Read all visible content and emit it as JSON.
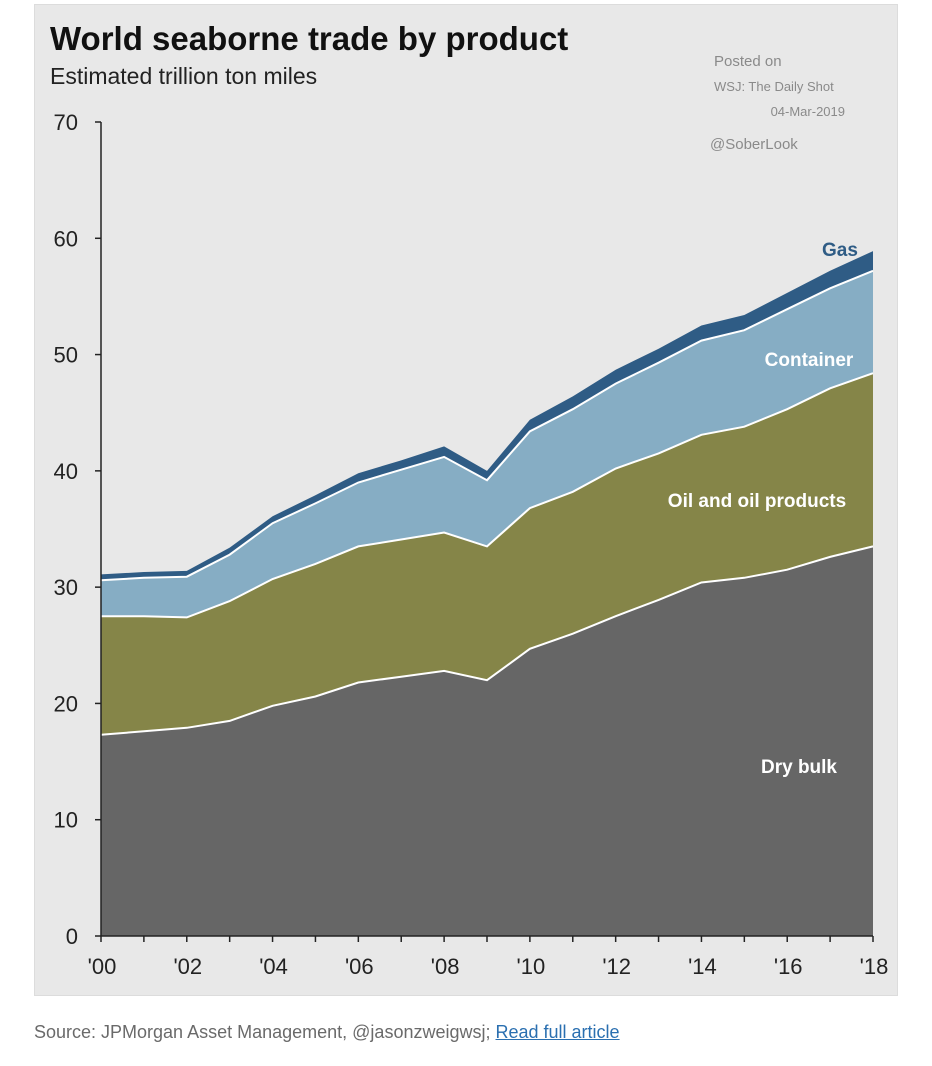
{
  "chart_data": {
    "type": "area",
    "stacked": true,
    "title": "World seaborne trade by product",
    "subtitle": "Estimated trillion ton miles",
    "x": [
      "'00",
      "'01",
      "'02",
      "'03",
      "'04",
      "'05",
      "'06",
      "'07",
      "'08",
      "'09",
      "'10",
      "'11",
      "'12",
      "'13",
      "'14",
      "'15",
      "'16",
      "'17",
      "'18"
    ],
    "x_tick_labels": [
      "'00",
      "'02",
      "'04",
      "'06",
      "'08",
      "'10",
      "'12",
      "'14",
      "'16",
      "'18"
    ],
    "ylim": [
      0,
      70
    ],
    "y_ticks": [
      "0",
      "10",
      "20",
      "30",
      "40",
      "50",
      "60",
      "70"
    ],
    "series": [
      {
        "name": "Dry bulk",
        "color": "#666666",
        "values": [
          17.3,
          17.6,
          17.9,
          18.5,
          19.8,
          20.6,
          21.8,
          22.3,
          22.8,
          22.0,
          24.7,
          26.0,
          27.5,
          28.9,
          30.4,
          30.8,
          31.5,
          32.6,
          33.5
        ]
      },
      {
        "name": "Oil and oil products",
        "color": "#858548",
        "values": [
          10.2,
          9.9,
          9.5,
          10.3,
          10.9,
          11.4,
          11.7,
          11.8,
          11.9,
          11.5,
          12.1,
          12.2,
          12.7,
          12.6,
          12.7,
          13.0,
          13.8,
          14.5,
          14.9
        ]
      },
      {
        "name": "Container",
        "color": "#86adc4",
        "values": [
          3.1,
          3.3,
          3.5,
          4.0,
          4.8,
          5.2,
          5.5,
          6.0,
          6.5,
          5.7,
          6.6,
          7.1,
          7.3,
          7.8,
          8.1,
          8.3,
          8.6,
          8.6,
          8.8
        ]
      },
      {
        "name": "Gas",
        "color": "#2f5c85",
        "values": [
          0.5,
          0.5,
          0.5,
          0.6,
          0.6,
          0.7,
          0.8,
          0.8,
          0.9,
          0.8,
          1.0,
          1.1,
          1.2,
          1.2,
          1.3,
          1.3,
          1.4,
          1.5,
          1.7
        ]
      }
    ],
    "series_label_colors": {
      "Dry bulk": "#ffffff",
      "Oil and oil products": "#ffffff",
      "Container": "#ffffff",
      "Gas": "#2f5c85"
    }
  },
  "credit": {
    "line1": "Posted on",
    "line2": "WSJ: The Daily Shot",
    "line3": "04-Mar-2019",
    "handle": "@SoberLook"
  },
  "source": {
    "text": "Source: JPMorgan Asset Management, @jasonzweigwsj; ",
    "link_label": "Read full article"
  }
}
